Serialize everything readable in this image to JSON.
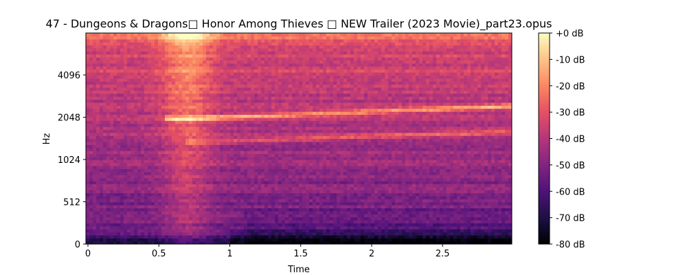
{
  "chart_data": {
    "type": "heatmap",
    "title": "47 - Dungeons & Dragons□ Honor Among Thieves □ NEW Trailer (2023 Movie)_part23.opus",
    "xlabel": "Time",
    "ylabel": "Hz",
    "xlim": [
      0,
      3.0
    ],
    "x_ticks": [
      0,
      0.5,
      1,
      1.5,
      2,
      2.5
    ],
    "x_tick_labels": [
      "0",
      "0.5",
      "1",
      "1.5",
      "2",
      "2.5"
    ],
    "y_scale": "log-like (mel/symlog)",
    "y_ticks": [
      0,
      512,
      1024,
      2048,
      4096
    ],
    "y_tick_labels": [
      "0",
      "512",
      "1024",
      "2048",
      "4096"
    ],
    "colormap": "magma",
    "colorbar": {
      "ticks": [
        0,
        -10,
        -20,
        -30,
        -40,
        -50,
        -60,
        -70,
        -80
      ],
      "tick_labels": [
        "+0 dB",
        "-10 dB",
        "-20 dB",
        "-30 dB",
        "-40 dB",
        "-50 dB",
        "-60 dB",
        "-70 dB",
        "-80 dB"
      ],
      "range": [
        -80,
        0
      ]
    },
    "grid": false
  }
}
